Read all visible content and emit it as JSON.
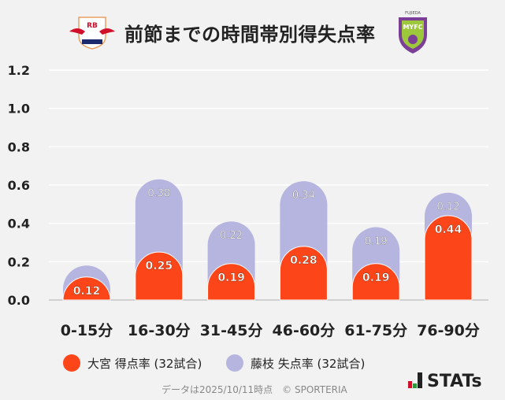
{
  "header": {
    "title": "前節までの時間帯別得失点率",
    "logo_left_text": "RB OMIYA ARDIJA",
    "logo_right_text": "FUJIEDA MYFC"
  },
  "chart_data": {
    "type": "bar",
    "stacked": true,
    "title": "前節までの時間帯別得失点率",
    "categories": [
      "0-15分",
      "16-30分",
      "31-45分",
      "46-60分",
      "61-75分",
      "76-90分"
    ],
    "ylim": [
      0,
      1.2
    ],
    "yticks": [
      "0.0",
      "0.2",
      "0.4",
      "0.6",
      "0.8",
      "1.0",
      "1.2"
    ],
    "grid": true,
    "legend_placement": "bottom",
    "series": [
      {
        "name": "大宮 得点率 (32試合)",
        "color": "#fc4619",
        "values": [
          0.12,
          0.25,
          0.19,
          0.28,
          0.19,
          0.44
        ],
        "labels": [
          "0.12",
          "0.25",
          "0.19",
          "0.28",
          "0.19",
          "0.44"
        ]
      },
      {
        "name": "藤枝 失点率 (32試合)",
        "color": "#b5b5df",
        "values": [
          0.06,
          0.38,
          0.22,
          0.34,
          0.19,
          0.12
        ],
        "labels": [
          "",
          "0.38",
          "0.22",
          "0.34",
          "0.19",
          "0.12"
        ]
      }
    ]
  },
  "footer": {
    "note": "データは2025/10/11時点　© SPORTERIA",
    "brand": "STATs"
  }
}
